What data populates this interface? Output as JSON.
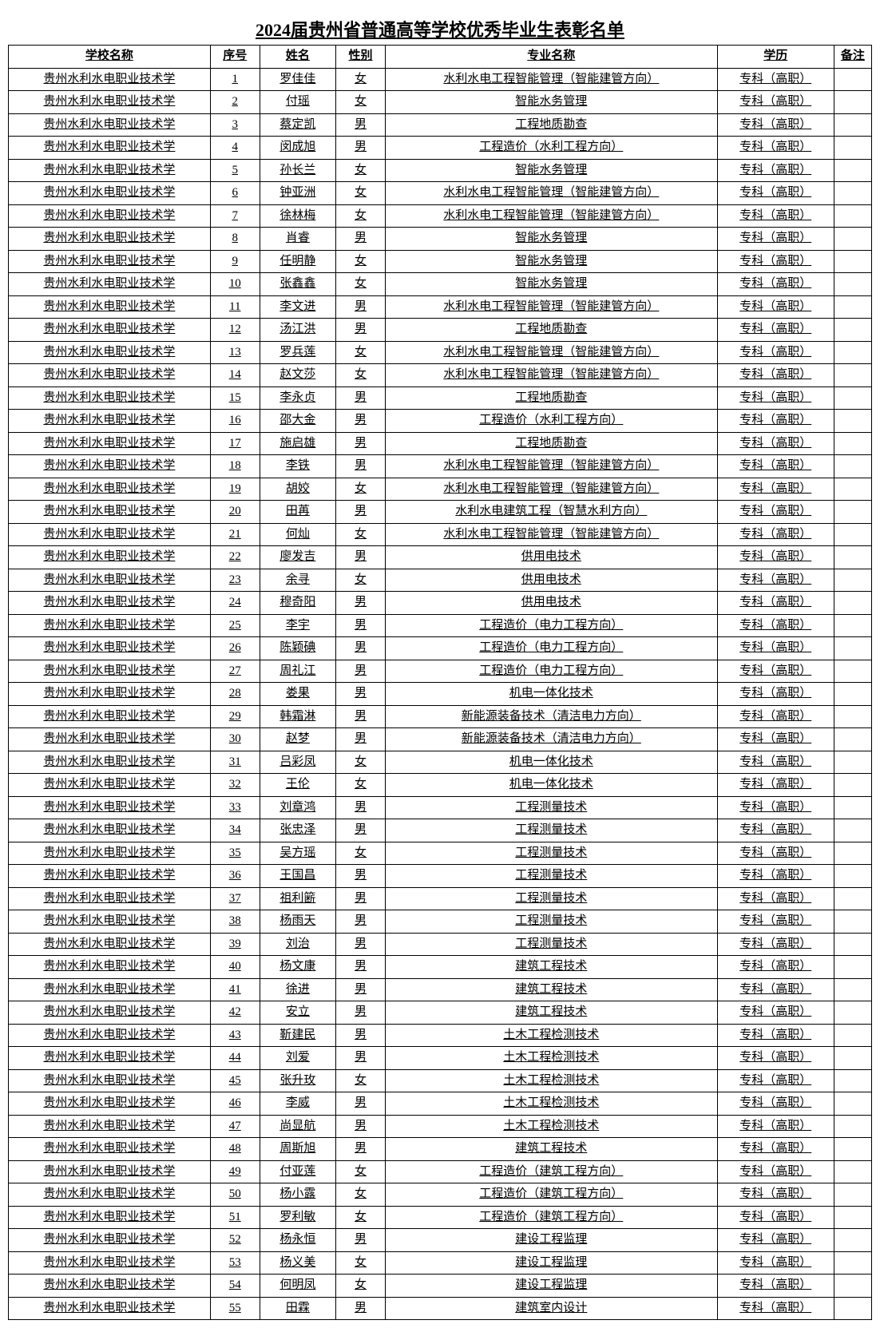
{
  "title": "2024届贵州省普通高等学校优秀毕业生表彰名单",
  "columns": [
    "学校名称",
    "序号",
    "姓名",
    "性别",
    "专业名称",
    "学历",
    "备注"
  ],
  "school": "贵州水利水电职业技术学",
  "edu": "专科（高职）",
  "rows": [
    {
      "no": "1",
      "name": "罗佳佳",
      "gender": "女",
      "major": "水利水电工程智能管理（智能建管方向）"
    },
    {
      "no": "2",
      "name": "付瑶",
      "gender": "女",
      "major": "智能水务管理"
    },
    {
      "no": "3",
      "name": "蔡定凯",
      "gender": "男",
      "major": "工程地质勘查"
    },
    {
      "no": "4",
      "name": "闵成旭",
      "gender": "男",
      "major": "工程造价（水利工程方向）"
    },
    {
      "no": "5",
      "name": "孙长兰",
      "gender": "女",
      "major": "智能水务管理"
    },
    {
      "no": "6",
      "name": "钟亚洲",
      "gender": "女",
      "major": "水利水电工程智能管理（智能建管方向）"
    },
    {
      "no": "7",
      "name": "徐林梅",
      "gender": "女",
      "major": "水利水电工程智能管理（智能建管方向）"
    },
    {
      "no": "8",
      "name": "肖睿",
      "gender": "男",
      "major": "智能水务管理"
    },
    {
      "no": "9",
      "name": "任明静",
      "gender": "女",
      "major": "智能水务管理"
    },
    {
      "no": "10",
      "name": "张鑫鑫",
      "gender": "女",
      "major": "智能水务管理"
    },
    {
      "no": "11",
      "name": "李文进",
      "gender": "男",
      "major": "水利水电工程智能管理（智能建管方向）"
    },
    {
      "no": "12",
      "name": "汤江洪",
      "gender": "男",
      "major": "工程地质勘查"
    },
    {
      "no": "13",
      "name": "罗兵莲",
      "gender": "女",
      "major": "水利水电工程智能管理（智能建管方向）"
    },
    {
      "no": "14",
      "name": "赵文莎",
      "gender": "女",
      "major": "水利水电工程智能管理（智能建管方向）"
    },
    {
      "no": "15",
      "name": "李永贞",
      "gender": "男",
      "major": "工程地质勘查"
    },
    {
      "no": "16",
      "name": "邵大金",
      "gender": "男",
      "major": "工程造价（水利工程方向）"
    },
    {
      "no": "17",
      "name": "施启雄",
      "gender": "男",
      "major": "工程地质勘查"
    },
    {
      "no": "18",
      "name": "李铁",
      "gender": "男",
      "major": "水利水电工程智能管理（智能建管方向）"
    },
    {
      "no": "19",
      "name": "胡姣",
      "gender": "女",
      "major": "水利水电工程智能管理（智能建管方向）"
    },
    {
      "no": "20",
      "name": "田苒",
      "gender": "男",
      "major": "水利水电建筑工程（智慧水利方向）"
    },
    {
      "no": "21",
      "name": "何灿",
      "gender": "女",
      "major": "水利水电工程智能管理（智能建管方向）"
    },
    {
      "no": "22",
      "name": "廖发吉",
      "gender": "男",
      "major": "供用电技术"
    },
    {
      "no": "23",
      "name": "余寻",
      "gender": "女",
      "major": "供用电技术"
    },
    {
      "no": "24",
      "name": "穆奇阳",
      "gender": "男",
      "major": "供用电技术"
    },
    {
      "no": "25",
      "name": "李宇",
      "gender": "男",
      "major": "工程造价（电力工程方向）"
    },
    {
      "no": "26",
      "name": "陈颖碘",
      "gender": "男",
      "major": "工程造价（电力工程方向）"
    },
    {
      "no": "27",
      "name": "周礼江",
      "gender": "男",
      "major": "工程造价（电力工程方向）"
    },
    {
      "no": "28",
      "name": "娄果",
      "gender": "男",
      "major": "机电一体化技术"
    },
    {
      "no": "29",
      "name": "韩霜淋",
      "gender": "男",
      "major": "新能源装备技术（清洁电力方向）"
    },
    {
      "no": "30",
      "name": "赵梦",
      "gender": "男",
      "major": "新能源装备技术（清洁电力方向）"
    },
    {
      "no": "31",
      "name": "吕彩凤",
      "gender": "女",
      "major": "机电一体化技术"
    },
    {
      "no": "32",
      "name": "王伦",
      "gender": "女",
      "major": "机电一体化技术"
    },
    {
      "no": "33",
      "name": "刘章鸿",
      "gender": "男",
      "major": "工程测量技术"
    },
    {
      "no": "34",
      "name": "张忠泽",
      "gender": "男",
      "major": "工程测量技术"
    },
    {
      "no": "35",
      "name": "吴方瑶",
      "gender": "女",
      "major": "工程测量技术"
    },
    {
      "no": "36",
      "name": "王国昌",
      "gender": "男",
      "major": "工程测量技术"
    },
    {
      "no": "37",
      "name": "祖利簖",
      "gender": "男",
      "major": "工程测量技术"
    },
    {
      "no": "38",
      "name": "杨雨天",
      "gender": "男",
      "major": "工程测量技术"
    },
    {
      "no": "39",
      "name": "刘治",
      "gender": "男",
      "major": "工程测量技术"
    },
    {
      "no": "40",
      "name": "杨文康",
      "gender": "男",
      "major": "建筑工程技术"
    },
    {
      "no": "41",
      "name": "徐进",
      "gender": "男",
      "major": "建筑工程技术"
    },
    {
      "no": "42",
      "name": "安立",
      "gender": "男",
      "major": "建筑工程技术"
    },
    {
      "no": "43",
      "name": "靳建民",
      "gender": "男",
      "major": "土木工程检测技术"
    },
    {
      "no": "44",
      "name": "刘爱",
      "gender": "男",
      "major": "土木工程检测技术"
    },
    {
      "no": "45",
      "name": "张升玫",
      "gender": "女",
      "major": "土木工程检测技术"
    },
    {
      "no": "46",
      "name": "李威",
      "gender": "男",
      "major": "土木工程检测技术"
    },
    {
      "no": "47",
      "name": "尚显航",
      "gender": "男",
      "major": "土木工程检测技术"
    },
    {
      "no": "48",
      "name": "周斯旭",
      "gender": "男",
      "major": "建筑工程技术"
    },
    {
      "no": "49",
      "name": "付亚莲",
      "gender": "女",
      "major": "工程造价（建筑工程方向）"
    },
    {
      "no": "50",
      "name": "杨小露",
      "gender": "女",
      "major": "工程造价（建筑工程方向）"
    },
    {
      "no": "51",
      "name": "罗利敏",
      "gender": "女",
      "major": "工程造价（建筑工程方向）"
    },
    {
      "no": "52",
      "name": "杨永恒",
      "gender": "男",
      "major": "建设工程监理"
    },
    {
      "no": "53",
      "name": "杨义美",
      "gender": "女",
      "major": "建设工程监理"
    },
    {
      "no": "54",
      "name": "何明凤",
      "gender": "女",
      "major": "建设工程监理"
    },
    {
      "no": "55",
      "name": "田霖",
      "gender": "男",
      "major": "建筑室内设计"
    }
  ]
}
